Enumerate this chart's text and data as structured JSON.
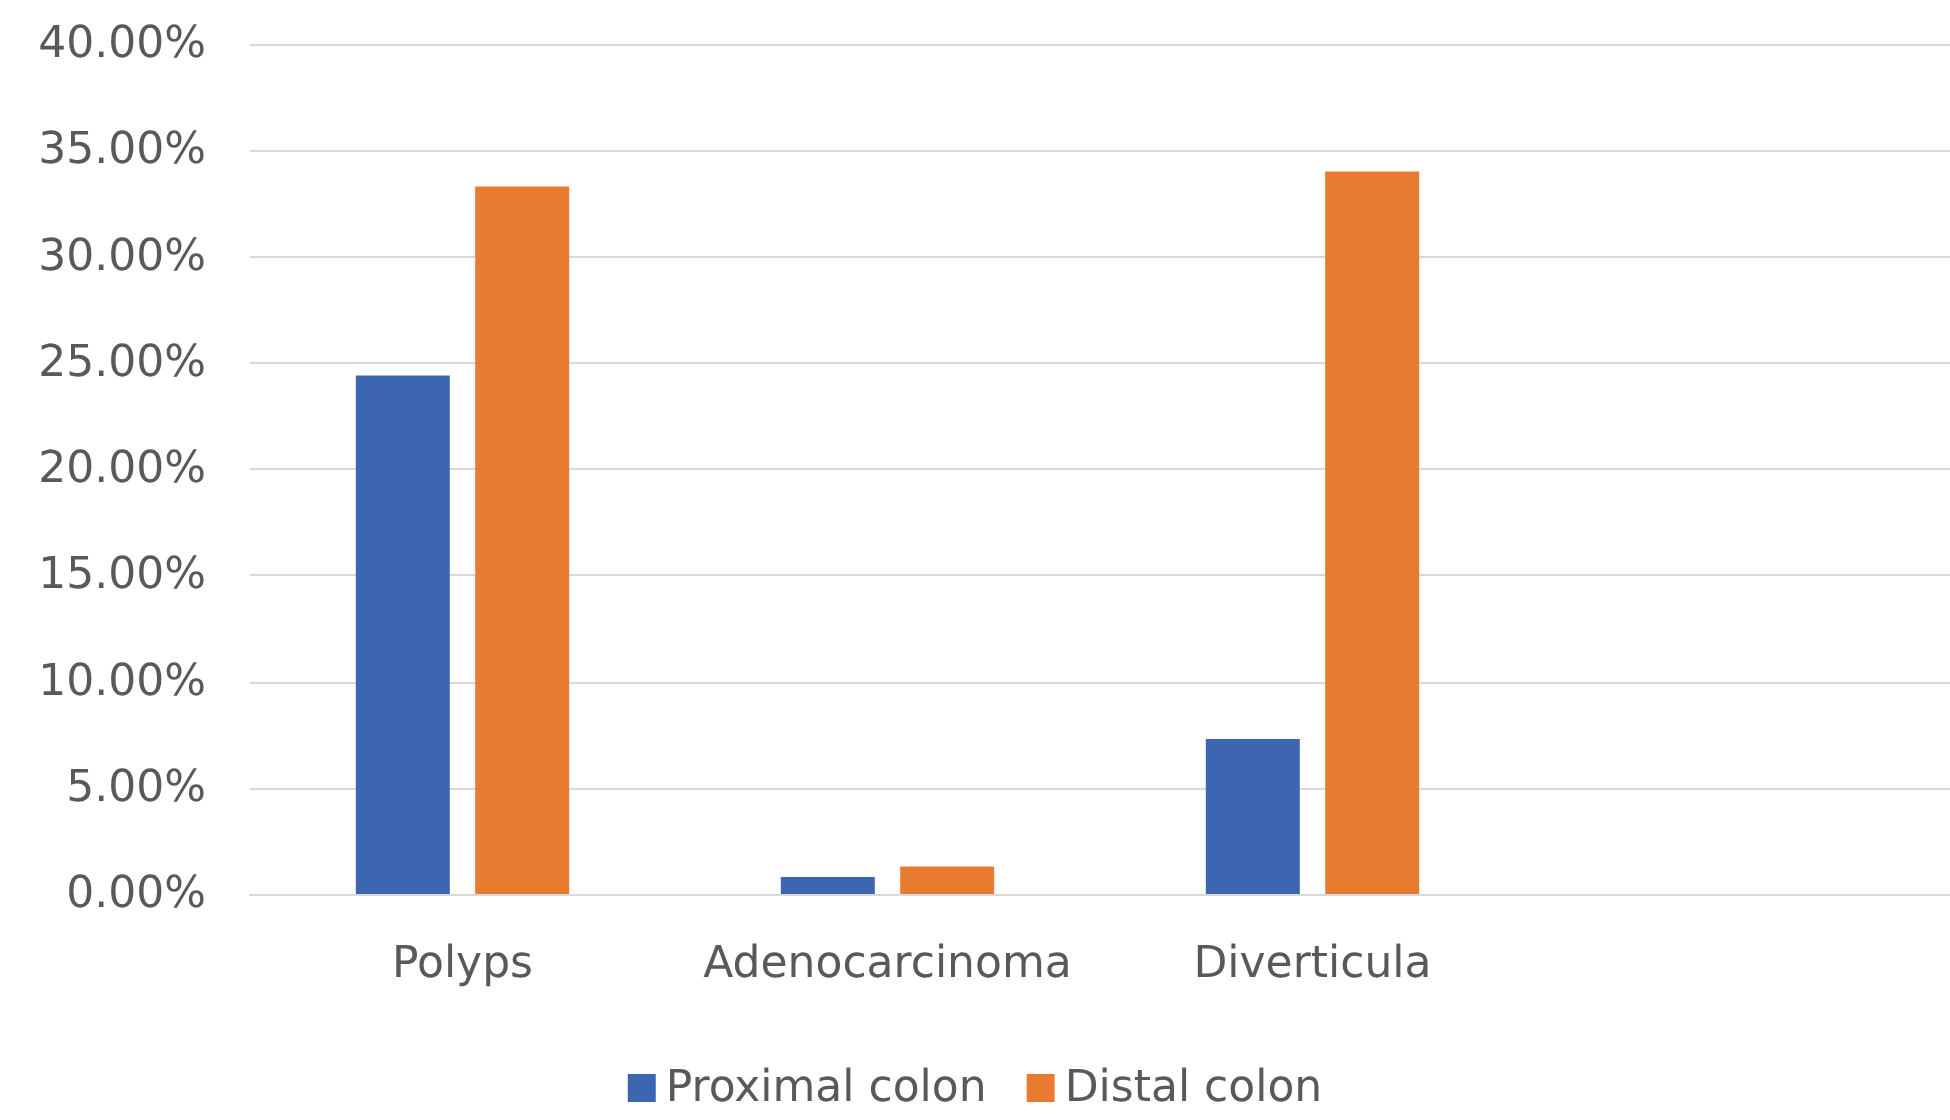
{
  "chart_data": {
    "type": "bar",
    "categories": [
      "Polyps",
      "Adenocarcinoma",
      "Diverticula",
      null
    ],
    "series": [
      {
        "name": "Proximal colon",
        "color": "#3c67b0",
        "values": [
          24.4,
          0.8,
          7.3,
          null
        ]
      },
      {
        "name": "Distal colon",
        "color": "#e97b30",
        "values": [
          33.3,
          1.3,
          34.0,
          null
        ]
      }
    ],
    "ylim": [
      0,
      40
    ],
    "yticks": [
      {
        "value": 0,
        "label": "0.00%"
      },
      {
        "value": 5,
        "label": "5.00%"
      },
      {
        "value": 10,
        "label": "10.00%"
      },
      {
        "value": 15,
        "label": "15.00%"
      },
      {
        "value": 20,
        "label": "20.00%"
      },
      {
        "value": 25,
        "label": "25.00%"
      },
      {
        "value": 30,
        "label": "30.00%"
      },
      {
        "value": 35,
        "label": "35.00%"
      },
      {
        "value": 40,
        "label": "40.00%"
      }
    ],
    "grid": "y",
    "legend": "bottom"
  }
}
